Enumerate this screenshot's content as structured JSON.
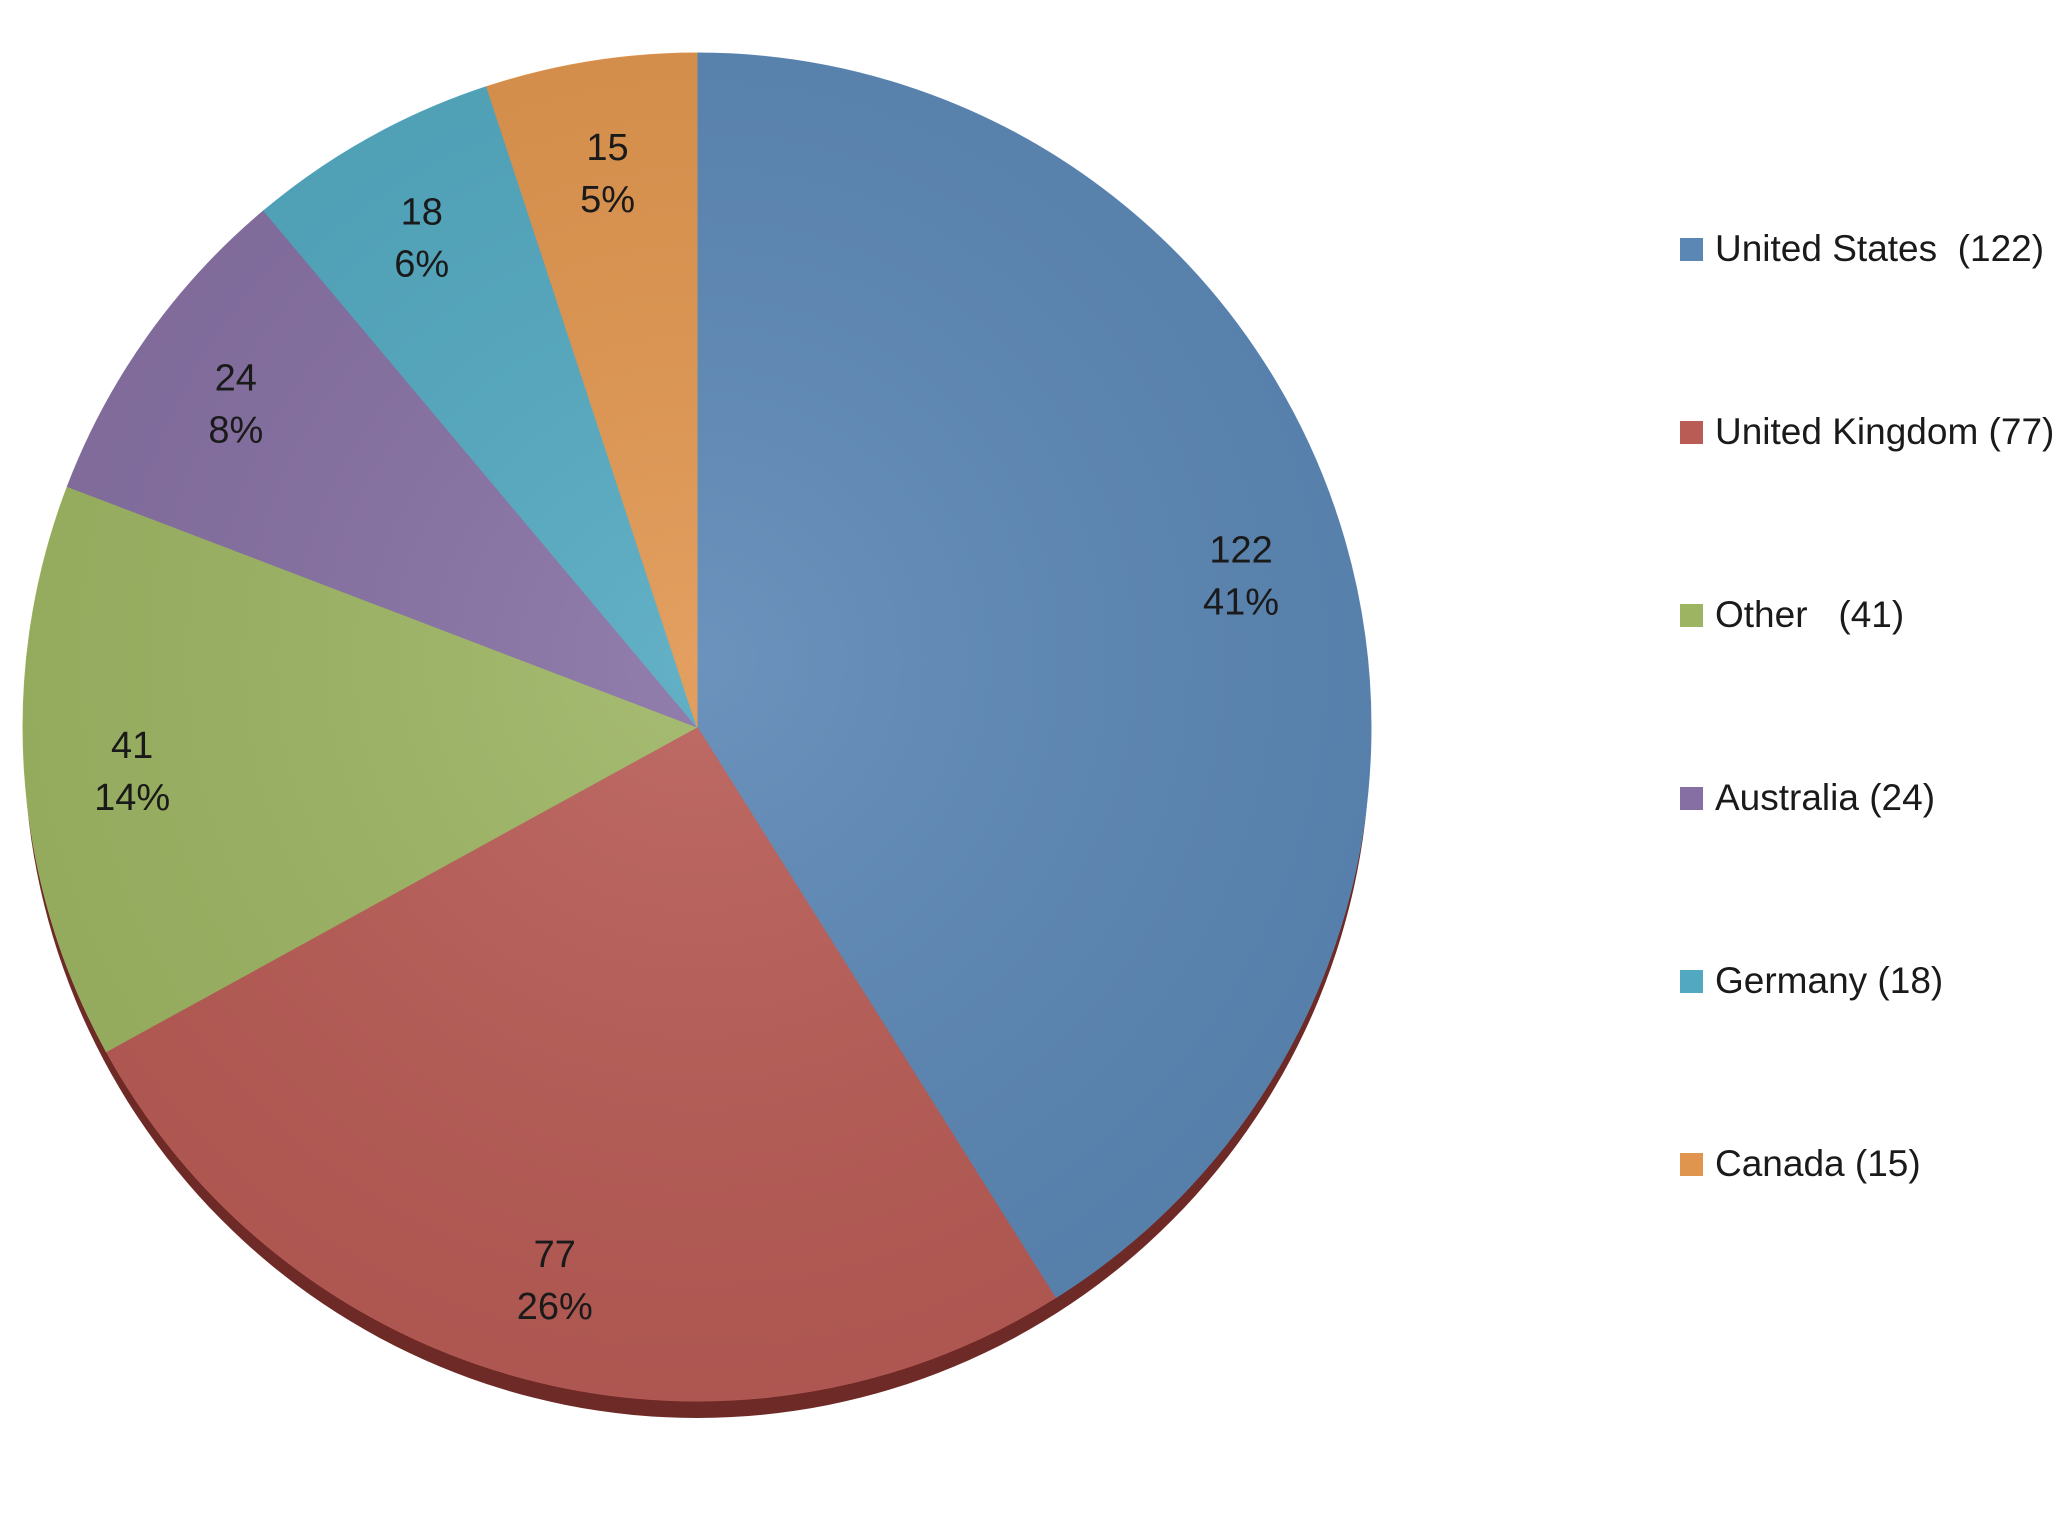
{
  "chart_data": {
    "type": "pie",
    "title": "",
    "slices": [
      {
        "label": "United States",
        "value": 122,
        "percent": "41%",
        "legend": "United States  (122)",
        "color": "#5B87B5"
      },
      {
        "label": "United Kingdom",
        "value": 77,
        "percent": "26%",
        "legend": "United Kingdom (77)",
        "color": "#B95C56"
      },
      {
        "label": "Other",
        "value": 41,
        "percent": "14%",
        "legend": "Other   (41)",
        "color": "#9DB563"
      },
      {
        "label": "Australia",
        "value": 24,
        "percent": "8%",
        "legend": "Australia (24)",
        "color": "#8670A3"
      },
      {
        "label": "Germany",
        "value": 18,
        "percent": "6%",
        "legend": "Germany (18)",
        "color": "#52A8C0"
      },
      {
        "label": "Canada",
        "value": 15,
        "percent": "5%",
        "legend": "Canada (15)",
        "color": "#E0954E"
      }
    ],
    "legend_position": "right",
    "start_angle": "top",
    "direction": "clockwise"
  }
}
